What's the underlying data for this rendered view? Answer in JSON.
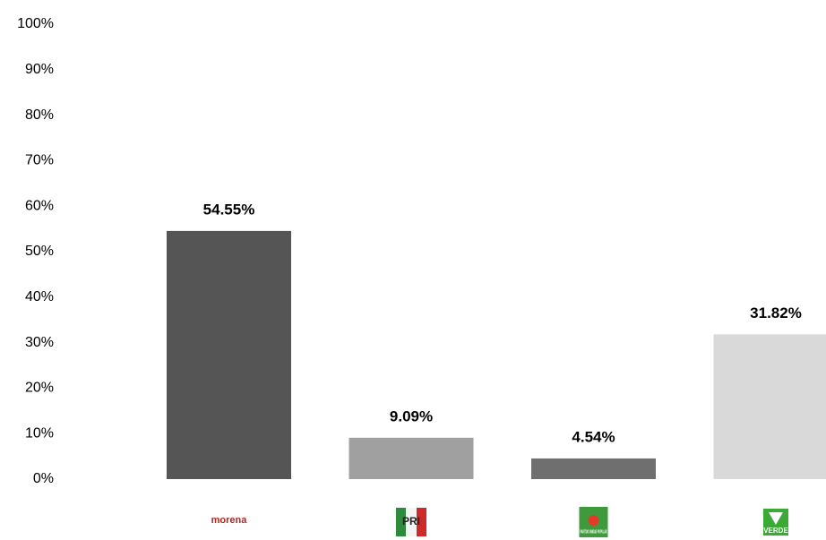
{
  "chart_data": {
    "type": "bar",
    "categories": [
      "morena",
      "PRI",
      "PARTIDO UNIDAD POPULAR",
      "VERDE"
    ],
    "values": [
      54.55,
      9.09,
      4.54,
      31.82
    ],
    "value_labels": [
      "54.55%",
      "9.09%",
      "4.54%",
      "31.82%"
    ],
    "colors": [
      "#555555",
      "#a0a0a0",
      "#6f6f6f",
      "#d9d9d9"
    ],
    "ylim": [
      0,
      100
    ],
    "yticks": [
      {
        "value": 0,
        "label": "0%"
      },
      {
        "value": 10,
        "label": "10%"
      },
      {
        "value": 20,
        "label": "20%"
      },
      {
        "value": 30,
        "label": "30%"
      },
      {
        "value": 40,
        "label": "40%"
      },
      {
        "value": 50,
        "label": "50%"
      },
      {
        "value": 60,
        "label": "60%"
      },
      {
        "value": 70,
        "label": "70%"
      },
      {
        "value": 80,
        "label": "80%"
      },
      {
        "value": 90,
        "label": "90%"
      },
      {
        "value": 100,
        "label": "100%"
      }
    ],
    "grid": false
  }
}
